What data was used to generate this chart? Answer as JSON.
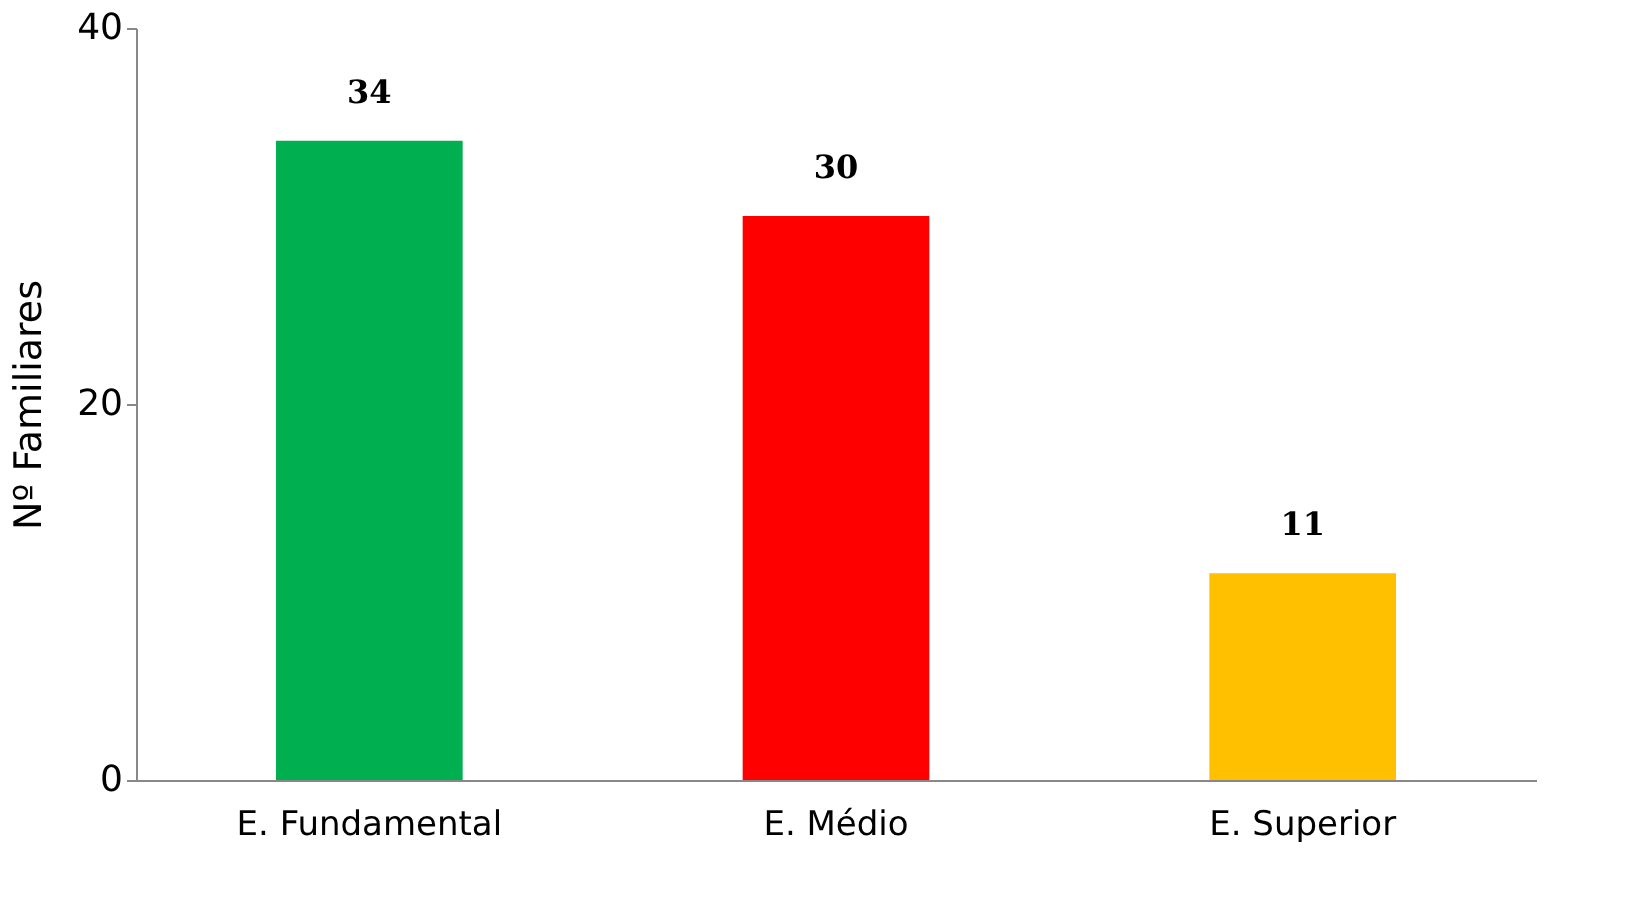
{
  "chart_data": {
    "type": "bar",
    "ylabel": "Nº Familiares",
    "categories": [
      "E. Fundamental",
      "E. Médio",
      "E. Superior"
    ],
    "values": [
      34,
      30,
      11
    ],
    "colors": [
      "#00b050",
      "#ff0000",
      "#ffc000"
    ],
    "ylim": [
      0,
      40
    ],
    "yticks": [
      0,
      20,
      40
    ],
    "grid": false,
    "data_labels": true
  }
}
